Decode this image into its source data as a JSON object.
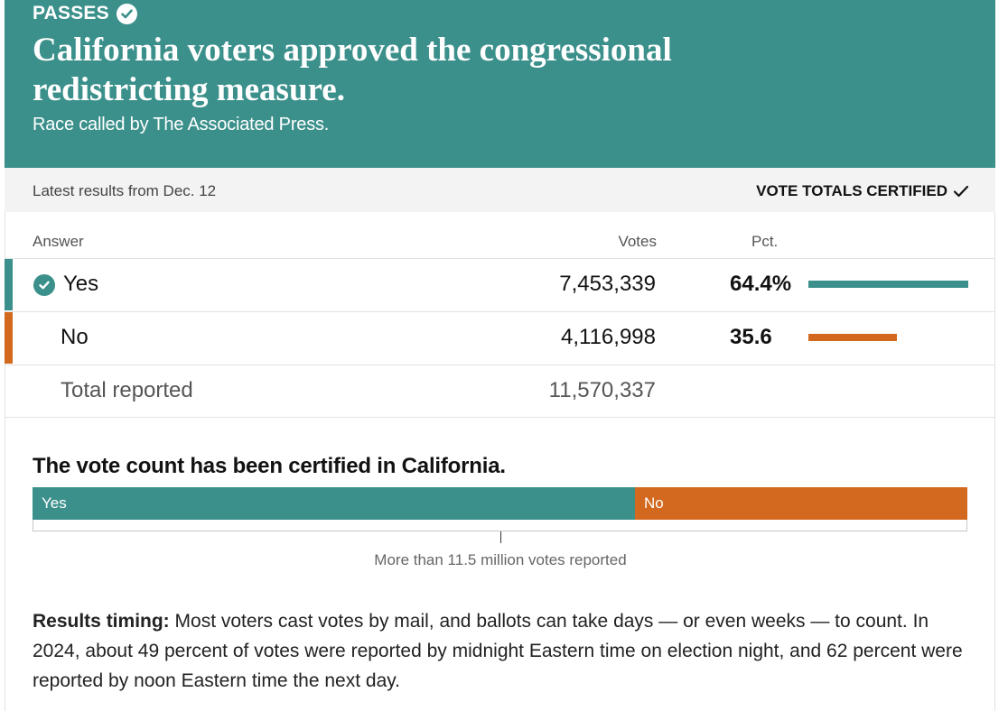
{
  "banner": {
    "status": "PASSES",
    "headline": "California voters approved the congressional redistricting measure.",
    "subline": "Race called by The Associated Press."
  },
  "statusbar": {
    "latest": "Latest results from Dec. 12",
    "certified": "VOTE TOTALS CERTIFIED"
  },
  "table": {
    "headers": {
      "answer": "Answer",
      "votes": "Votes",
      "pct": "Pct."
    },
    "rows": [
      {
        "answer": "Yes",
        "votes": "7,453,339",
        "pct": "64.4%",
        "share": 0.644,
        "color": "#3b908b",
        "winner": true
      },
      {
        "answer": "No",
        "votes": "4,116,998",
        "pct": "35.6",
        "share": 0.356,
        "color": "#d2691e",
        "winner": false
      }
    ],
    "total": {
      "label": "Total reported",
      "votes": "11,570,337"
    }
  },
  "certified_section": {
    "title": "The vote count has been certified in California.",
    "yes_label": "Yes",
    "no_label": "No",
    "yes_share": 0.644,
    "no_share": 0.356,
    "reported_label": "More than 11.5 million votes reported"
  },
  "timing": {
    "label": "Results timing:",
    "text": " Most voters cast votes by mail, and ballots can take days — or even weeks — to count. In 2024, about 49 percent of votes were reported by midnight Eastern time on election night, and 62 percent were reported by noon Eastern time the next day."
  },
  "colors": {
    "yes": "#3b908b",
    "no": "#d2691e"
  }
}
